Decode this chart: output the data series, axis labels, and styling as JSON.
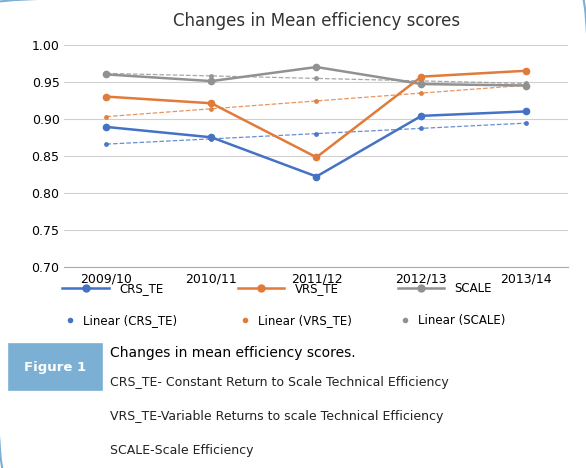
{
  "title": "Changes in Mean efficiency scores",
  "x_labels": [
    "2009/10",
    "2010/11",
    "2011/12",
    "2012/13",
    "2013/14"
  ],
  "x_values": [
    0,
    1,
    2,
    3,
    4
  ],
  "CRS_TE": [
    0.889,
    0.875,
    0.822,
    0.904,
    0.91
  ],
  "VRS_TE": [
    0.93,
    0.921,
    0.848,
    0.957,
    0.965
  ],
  "SCALE": [
    0.96,
    0.951,
    0.97,
    0.947,
    0.945
  ],
  "CRS_TE_color": "#4472C4",
  "VRS_TE_color": "#E07B39",
  "SCALE_color": "#919191",
  "ylim": [
    0.7,
    1.01
  ],
  "yticks": [
    0.7,
    0.75,
    0.8,
    0.85,
    0.9,
    0.95,
    1.0
  ],
  "figure_caption_title": "Changes in mean efficiency scores.",
  "figure_caption_lines": [
    "CRS_TE- Constant Return to Scale Technical Efficiency",
    "VRS_TE-Variable Returns to scale Technical Efficiency",
    "SCALE-Scale Efficiency"
  ],
  "figure_label": "Figure 1",
  "border_color": "#7bafd4",
  "fig1_box_color": "#7bafd4"
}
